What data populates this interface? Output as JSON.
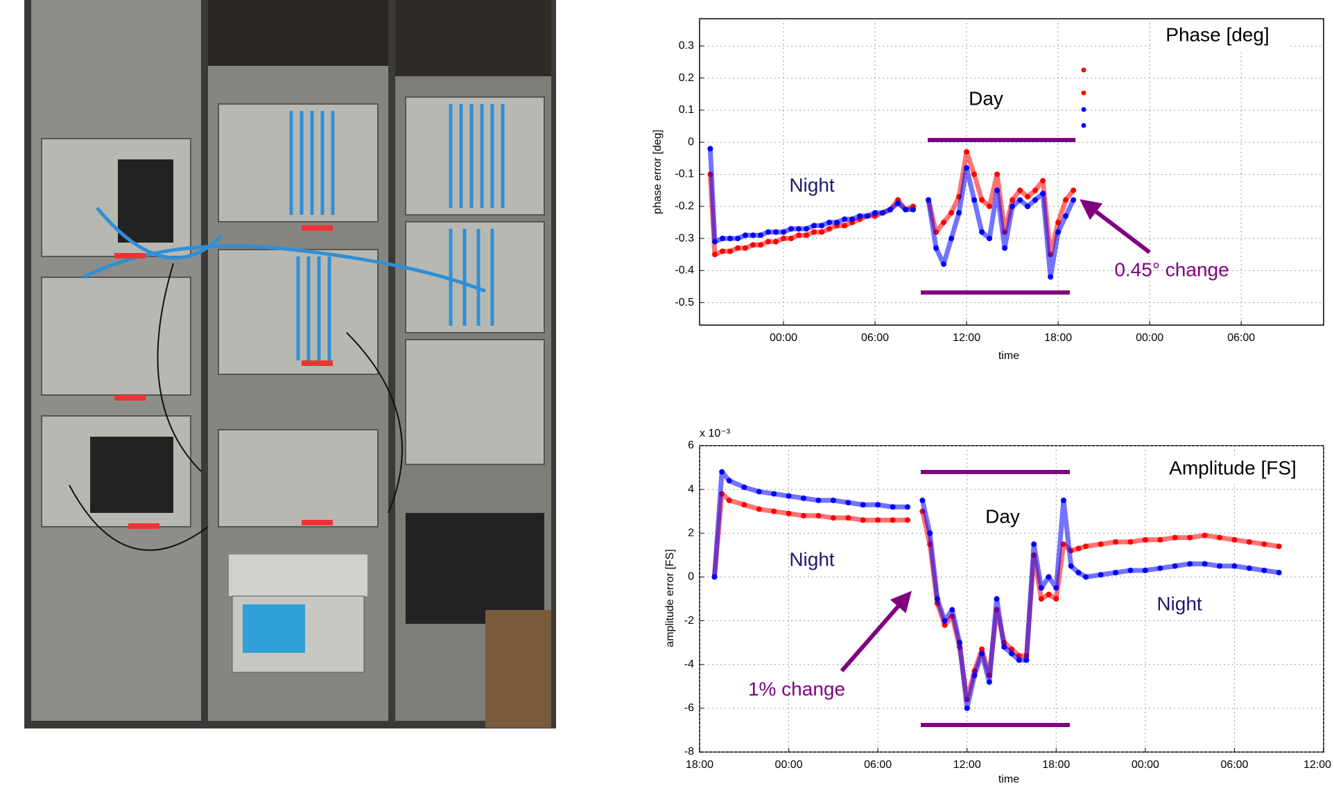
{
  "chart_data": [
    {
      "type": "scatter",
      "title": "Phase [deg]",
      "ylabel": "phase error [deg]",
      "xlabel": "time",
      "annotations": [
        "Day",
        "Night",
        "0.45° change"
      ],
      "x": [
        -4.8,
        -4.5,
        -4,
        -3.5,
        -3,
        -2.5,
        -2,
        -1.5,
        -1,
        -0.5,
        0,
        0.5,
        1,
        1.5,
        2,
        2.5,
        3,
        3.5,
        4,
        4.5,
        5,
        5.5,
        6,
        6.5,
        7,
        7.5,
        8,
        8.5,
        9,
        9.5,
        10,
        10.5,
        11,
        11.5,
        12,
        12.5,
        13,
        13.5,
        14,
        14.5,
        15,
        15.5,
        16,
        16.5,
        17,
        17.5,
        18,
        18.5,
        19
      ],
      "series": [
        {
          "color": "#ff0000",
          "values": [
            -0.1,
            -0.35,
            -0.34,
            -0.34,
            -0.33,
            -0.33,
            -0.32,
            -0.32,
            -0.31,
            -0.31,
            -0.3,
            -0.3,
            -0.29,
            -0.29,
            -0.28,
            -0.28,
            -0.27,
            -0.26,
            -0.26,
            -0.25,
            -0.24,
            -0.23,
            -0.23,
            -0.22,
            -0.21,
            -0.18,
            -0.21,
            -0.2,
            null,
            -0.18,
            -0.28,
            -0.25,
            -0.22,
            -0.17,
            -0.03,
            -0.1,
            -0.18,
            -0.2,
            -0.1,
            -0.28,
            -0.18,
            -0.15,
            -0.17,
            -0.15,
            -0.12,
            -0.35,
            -0.25,
            -0.18,
            -0.15
          ]
        },
        {
          "color": "#0000ff",
          "values": [
            -0.02,
            -0.31,
            -0.3,
            -0.3,
            -0.3,
            -0.29,
            -0.29,
            -0.29,
            -0.28,
            -0.28,
            -0.28,
            -0.27,
            -0.27,
            -0.27,
            -0.26,
            -0.26,
            -0.25,
            -0.25,
            -0.24,
            -0.24,
            -0.23,
            -0.23,
            -0.22,
            -0.22,
            -0.21,
            -0.19,
            -0.21,
            -0.21,
            null,
            -0.18,
            -0.33,
            -0.38,
            -0.3,
            -0.22,
            -0.08,
            -0.18,
            -0.28,
            -0.3,
            -0.15,
            -0.33,
            -0.2,
            -0.18,
            -0.2,
            -0.18,
            -0.16,
            -0.42,
            -0.28,
            -0.23,
            -0.18
          ]
        }
      ],
      "xlim": [
        -5.5,
        35.4
      ],
      "ylim": [
        -0.57,
        0.385
      ],
      "xticks": [
        {
          "value": 0,
          "label": "00:00"
        },
        {
          "value": 6,
          "label": "06:00"
        },
        {
          "value": 12,
          "label": "12:00"
        },
        {
          "value": 18,
          "label": "18:00"
        },
        {
          "value": 24,
          "label": "00:00"
        },
        {
          "value": 30,
          "label": "06:00"
        }
      ],
      "yticks": [
        0.3,
        0.2,
        0.1,
        0,
        -0.1,
        -0.2,
        -0.3,
        -0.4,
        -0.5
      ],
      "grid": true
    },
    {
      "type": "scatter",
      "title": "Amplitude [FS]",
      "ylabel": "amplitude error [FS]",
      "xlabel": "time",
      "y_multiplier": "x 10⁻³",
      "annotations": [
        "Day",
        "Night",
        "Night",
        "1% change"
      ],
      "x": [
        -5,
        -4.5,
        -4,
        -3,
        -2,
        -1,
        0,
        1,
        2,
        3,
        4,
        5,
        6,
        7,
        8,
        8.5,
        9,
        9.5,
        10,
        10.5,
        11,
        11.5,
        12,
        12.5,
        13,
        13.5,
        14,
        14.5,
        15,
        15.5,
        16,
        16.5,
        17,
        17.5,
        18,
        18.5,
        19,
        19.5,
        20,
        21,
        22,
        23,
        24,
        25,
        26,
        27,
        28,
        29,
        30,
        31,
        32,
        33
      ],
      "series": [
        {
          "color": "#ff0000",
          "values": [
            0,
            3.8,
            3.5,
            3.3,
            3.1,
            3.0,
            2.9,
            2.8,
            2.8,
            2.7,
            2.7,
            2.6,
            2.6,
            2.6,
            2.6,
            null,
            3.0,
            1.5,
            -1.2,
            -2.2,
            -1.8,
            -3.2,
            -5.6,
            -4.3,
            -3.3,
            -4.5,
            -1.5,
            -3.0,
            -3.3,
            -3.6,
            -3.6,
            1.0,
            -1.0,
            -0.8,
            -1.0,
            1.5,
            1.2,
            1.3,
            1.4,
            1.5,
            1.6,
            1.6,
            1.7,
            1.7,
            1.8,
            1.8,
            1.9,
            1.8,
            1.7,
            1.6,
            1.5,
            1.4
          ]
        },
        {
          "color": "#0000ff",
          "values": [
            0,
            4.8,
            4.4,
            4.1,
            3.9,
            3.8,
            3.7,
            3.6,
            3.5,
            3.5,
            3.4,
            3.3,
            3.3,
            3.2,
            3.2,
            null,
            3.5,
            2.0,
            -1.0,
            -2.0,
            -1.5,
            -3.0,
            -6.0,
            -4.5,
            -3.5,
            -4.8,
            -1.0,
            -3.2,
            -3.5,
            -3.8,
            -3.8,
            1.5,
            -0.5,
            0.0,
            -0.5,
            3.5,
            0.5,
            0.2,
            0.0,
            0.1,
            0.2,
            0.3,
            0.3,
            0.4,
            0.5,
            0.6,
            0.6,
            0.5,
            0.5,
            0.4,
            0.3,
            0.2
          ]
        }
      ],
      "xlim": [
        -6,
        36
      ],
      "ylim": [
        -8,
        6
      ],
      "xticks": [
        {
          "value": -6,
          "label": "18:00"
        },
        {
          "value": 0,
          "label": "00:00"
        },
        {
          "value": 6,
          "label": "06:00"
        },
        {
          "value": 12,
          "label": "12:00"
        },
        {
          "value": 18,
          "label": "18:00"
        },
        {
          "value": 24,
          "label": "00:00"
        },
        {
          "value": 30,
          "label": "06:00"
        },
        {
          "value": 36,
          "label": "12:00"
        }
      ],
      "yticks": [
        6,
        4,
        2,
        0,
        -2,
        -4,
        -6,
        -8
      ],
      "grid": true
    }
  ]
}
